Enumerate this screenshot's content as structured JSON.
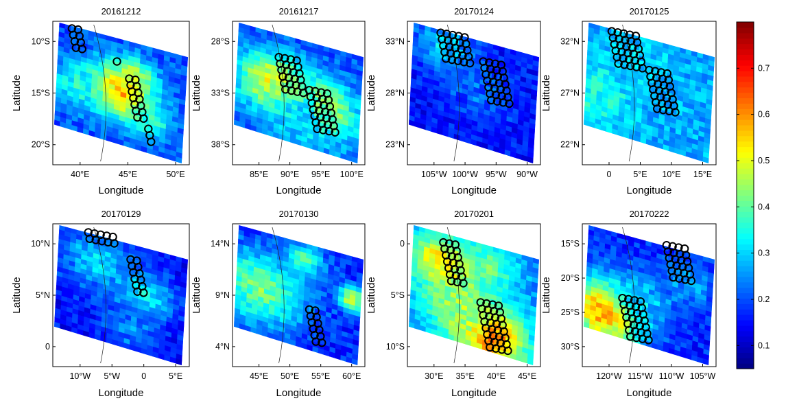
{
  "chart_data": {
    "type": "heatmap",
    "xlabel": "Longitude",
    "ylabel": "Latitude",
    "colorbar": {
      "range": [
        0.05,
        0.8
      ],
      "ticks": [
        "0.1",
        "0.2",
        "0.3",
        "0.4",
        "0.5",
        "0.6",
        "0.7"
      ],
      "colormap": "jet",
      "position": "right"
    },
    "panels": [
      {
        "title": "20161212",
        "x_ticks": [
          "40°E",
          "45°E",
          "50°E"
        ],
        "y_ticks": [
          "10°S",
          "15°S",
          "20°S"
        ],
        "background": 0.2,
        "hotspots": [
          {
            "u": 0.5,
            "v": 0.5,
            "r": 0.18,
            "val": 0.6
          },
          {
            "u": 0.15,
            "v": 0.55,
            "r": 0.15,
            "val": 0.35
          },
          {
            "u": 0.6,
            "v": 0.3,
            "r": 0.1,
            "val": 0.45
          },
          {
            "u": 0.75,
            "v": 0.7,
            "r": 0.1,
            "val": 0.38
          }
        ],
        "markers": [
          {
            "u": 0.14,
            "v": 0.05,
            "cols": 2,
            "rows": 4
          },
          {
            "u": 0.47,
            "v": 0.28,
            "cols": 1,
            "rows": 1
          },
          {
            "u": 0.56,
            "v": 0.4,
            "cols": 2,
            "rows": 7
          },
          {
            "u": 0.7,
            "v": 0.75,
            "cols": 1,
            "rows": 3
          }
        ]
      },
      {
        "title": "20161217",
        "x_ticks": [
          "85°E",
          "90°E",
          "95°E",
          "100°E"
        ],
        "y_ticks": [
          "28°S",
          "33°S",
          "38°S"
        ],
        "background": 0.2,
        "hotspots": [
          {
            "u": 0.3,
            "v": 0.5,
            "r": 0.2,
            "val": 0.55
          },
          {
            "u": 0.7,
            "v": 0.6,
            "r": 0.2,
            "val": 0.5
          },
          {
            "u": 0.5,
            "v": 0.75,
            "r": 0.2,
            "val": 0.3
          }
        ],
        "markers": [
          {
            "u": 0.35,
            "v": 0.25,
            "cols": 4,
            "rows": 6
          },
          {
            "u": 0.58,
            "v": 0.48,
            "cols": 4,
            "rows": 7
          }
        ]
      },
      {
        "title": "20170124",
        "x_ticks": [
          "105°W",
          "100°W",
          "95°W",
          "90°W"
        ],
        "y_ticks": [
          "33°N",
          "28°N",
          "23°N"
        ],
        "background": 0.15,
        "hotspots": [
          {
            "u": 0.25,
            "v": 0.15,
            "r": 0.18,
            "val": 0.3
          },
          {
            "u": 0.55,
            "v": 0.5,
            "r": 0.2,
            "val": 0.22
          }
        ],
        "markers": [
          {
            "u": 0.25,
            "v": 0.08,
            "cols": 5,
            "rows": 5
          },
          {
            "u": 0.57,
            "v": 0.28,
            "cols": 4,
            "rows": 7
          }
        ]
      },
      {
        "title": "20170125",
        "x_ticks": [
          "0",
          "5°E",
          "10°E",
          "15°E"
        ],
        "y_ticks": [
          "32°N",
          "27°N",
          "22°N"
        ],
        "background": 0.27,
        "hotspots": [
          {
            "u": 0.1,
            "v": 0.65,
            "r": 0.2,
            "val": 0.36
          },
          {
            "u": 0.4,
            "v": 0.2,
            "r": 0.2,
            "val": 0.3
          }
        ],
        "markers": [
          {
            "u": 0.22,
            "v": 0.07,
            "cols": 5,
            "rows": 6
          },
          {
            "u": 0.5,
            "v": 0.34,
            "cols": 4,
            "rows": 7
          }
        ]
      },
      {
        "title": "20170129",
        "x_ticks": [
          "10°W",
          "5°W",
          "0",
          "5°E"
        ],
        "y_ticks": [
          "10°N",
          "5°N",
          "0"
        ],
        "background": 0.15,
        "hotspots": [
          {
            "u": 0.3,
            "v": 0.25,
            "r": 0.2,
            "val": 0.3
          },
          {
            "u": 0.7,
            "v": 0.45,
            "r": 0.15,
            "val": 0.33
          },
          {
            "u": 0.6,
            "v": 0.8,
            "r": 0.15,
            "val": 0.25
          }
        ],
        "markers": [
          {
            "u": 0.26,
            "v": 0.06,
            "cols": 5,
            "rows": 2
          },
          {
            "u": 0.57,
            "v": 0.25,
            "cols": 2,
            "rows": 6
          }
        ]
      },
      {
        "title": "20170130",
        "x_ticks": [
          "45°E",
          "50°E",
          "55°E",
          "60°E"
        ],
        "y_ticks": [
          "14°N",
          "9°N",
          "4°N"
        ],
        "background": 0.17,
        "hotspots": [
          {
            "u": 0.2,
            "v": 0.55,
            "r": 0.25,
            "val": 0.42
          },
          {
            "u": 0.55,
            "v": 0.15,
            "r": 0.1,
            "val": 0.4
          },
          {
            "u": 0.93,
            "v": 0.4,
            "r": 0.08,
            "val": 0.5
          }
        ],
        "markers": [
          {
            "u": 0.58,
            "v": 0.6,
            "cols": 2,
            "rows": 6
          }
        ]
      },
      {
        "title": "20170201",
        "x_ticks": [
          "30°E",
          "35°E",
          "40°E",
          "45°E"
        ],
        "y_ticks": [
          "0",
          "5°S",
          "10°S"
        ],
        "background": 0.25,
        "hotspots": [
          {
            "u": 0.25,
            "v": 0.3,
            "r": 0.2,
            "val": 0.55
          },
          {
            "u": 0.65,
            "v": 0.85,
            "r": 0.2,
            "val": 0.65
          },
          {
            "u": 0.4,
            "v": 0.7,
            "r": 0.2,
            "val": 0.45
          },
          {
            "u": 0.6,
            "v": 0.2,
            "r": 0.15,
            "val": 0.4
          }
        ],
        "markers": [
          {
            "u": 0.27,
            "v": 0.13,
            "cols": 3,
            "rows": 7
          },
          {
            "u": 0.55,
            "v": 0.55,
            "cols": 4,
            "rows": 8
          }
        ]
      },
      {
        "title": "20170222",
        "x_ticks": [
          "120°W",
          "115°W",
          "110°W",
          "105°W"
        ],
        "y_ticks": [
          "15°S",
          "20°S",
          "25°S",
          "30°S"
        ],
        "background": 0.17,
        "hotspots": [
          {
            "u": 0.15,
            "v": 0.8,
            "r": 0.22,
            "val": 0.6
          },
          {
            "u": 0.45,
            "v": 0.55,
            "r": 0.15,
            "val": 0.3
          },
          {
            "u": 0.8,
            "v": 0.3,
            "r": 0.15,
            "val": 0.27
          }
        ],
        "markers": [
          {
            "u": 0.3,
            "v": 0.52,
            "cols": 4,
            "rows": 7
          },
          {
            "u": 0.63,
            "v": 0.15,
            "cols": 4,
            "rows": 6
          }
        ]
      }
    ]
  }
}
